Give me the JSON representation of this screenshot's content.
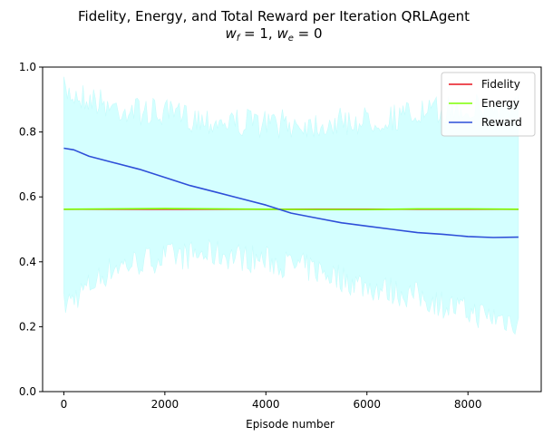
{
  "chart_data": {
    "type": "line",
    "title": "Fidelity, Energy, and Total Reward per Iteration QRLAgent",
    "subtitle": "w_f = 1, w_e = 0",
    "subtitle_parts": {
      "w": "w",
      "f_sub": "f",
      "eq1": " = 1, ",
      "e_sub": "e",
      "eq2": " = 0"
    },
    "xlabel": "Episode number",
    "ylabel": "",
    "xlim": [
      -420,
      9450
    ],
    "ylim": [
      0,
      1.0
    ],
    "x_ticks": [
      0,
      2000,
      4000,
      6000,
      8000
    ],
    "y_ticks": [
      0.0,
      0.2,
      0.4,
      0.6,
      0.8,
      1.0
    ],
    "x_tick_labels": [
      "0",
      "2000",
      "4000",
      "6000",
      "8000"
    ],
    "y_tick_labels": [
      "0.0",
      "0.2",
      "0.4",
      "0.6",
      "0.8",
      "1.0"
    ],
    "legend_position": "top-right",
    "band": {
      "name": "",
      "color": "#d4ffff",
      "x": [
        0,
        500,
        1000,
        2000,
        3000,
        4000,
        5000,
        6000,
        7000,
        8000,
        9000
      ],
      "upper": [
        0.97,
        0.95,
        0.92,
        0.9,
        0.88,
        0.87,
        0.87,
        0.88,
        0.9,
        0.92,
        0.92
      ],
      "lower": [
        0.22,
        0.28,
        0.34,
        0.37,
        0.38,
        0.36,
        0.33,
        0.28,
        0.25,
        0.2,
        0.17
      ]
    },
    "series": [
      {
        "name": "Fidelity",
        "color": "#e8141e",
        "x": [
          0,
          9000
        ],
        "values": [
          0.562,
          0.562
        ]
      },
      {
        "name": "Energy",
        "color": "#7fff00",
        "x": [
          0,
          1000,
          2000,
          3000,
          4000,
          5000,
          6000,
          7000,
          8000,
          9000
        ],
        "values": [
          0.562,
          0.563,
          0.564,
          0.563,
          0.562,
          0.561,
          0.561,
          0.563,
          0.563,
          0.562
        ]
      },
      {
        "name": "Reward",
        "color": "#2e4fd8",
        "x": [
          0,
          200,
          500,
          1000,
          1500,
          2000,
          2500,
          3000,
          3500,
          4000,
          4500,
          5000,
          5500,
          6000,
          6500,
          7000,
          7500,
          8000,
          8500,
          9000
        ],
        "values": [
          0.75,
          0.745,
          0.725,
          0.705,
          0.685,
          0.66,
          0.635,
          0.615,
          0.595,
          0.575,
          0.55,
          0.535,
          0.52,
          0.51,
          0.5,
          0.49,
          0.485,
          0.478,
          0.475,
          0.476
        ]
      }
    ]
  }
}
